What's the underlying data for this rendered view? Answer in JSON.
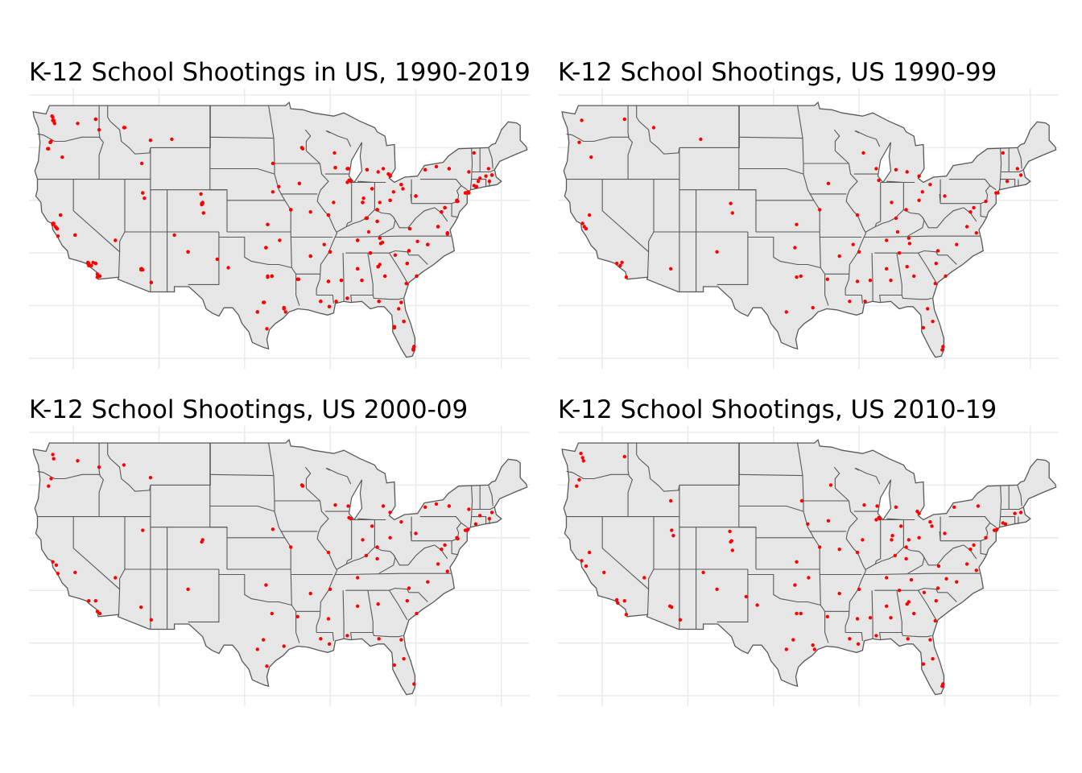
{
  "panels": [
    {
      "title": "K-12 School Shootings in US, 1990-2019",
      "region": "all"
    },
    {
      "title": "K-12 School Shootings, US 1990-99",
      "region": "1990-99"
    },
    {
      "title": "K-12 School Shootings, US 2000-09",
      "region": "2000-09"
    },
    {
      "title": "K-12 School Shootings, US 2010-19",
      "region": "2010-19"
    }
  ],
  "colors": {
    "land": "#e6e6e6",
    "border": "#595959",
    "grid": "#ebebeb",
    "point": "#ff0000"
  },
  "map_data": {
    "x_range": [
      -125,
      -66.5
    ],
    "y_range": [
      24,
      50
    ],
    "grid_lon": [
      -120,
      -110,
      -100,
      -90,
      -80,
      -70
    ],
    "grid_lat": [
      25,
      30,
      35,
      40,
      45,
      50
    ],
    "points": {
      "1990-99": [
        [
          -122.4,
          47.6
        ],
        [
          -117.4,
          47.7
        ],
        [
          -122.7,
          45.5
        ],
        [
          -121.3,
          44.1
        ],
        [
          -114.0,
          46.9
        ],
        [
          -108.5,
          45.8
        ],
        [
          -122.3,
          37.8
        ],
        [
          -121.9,
          37.3
        ],
        [
          -122.1,
          37.5
        ],
        [
          -121.5,
          38.6
        ],
        [
          -118.3,
          34.0
        ],
        [
          -117.9,
          33.8
        ],
        [
          -117.2,
          32.7
        ],
        [
          -117.7,
          34.1
        ],
        [
          -112.0,
          33.5
        ],
        [
          -106.6,
          35.1
        ],
        [
          -104.8,
          38.8
        ],
        [
          -105.0,
          39.7
        ],
        [
          -97.3,
          37.7
        ],
        [
          -96.8,
          32.8
        ],
        [
          -97.3,
          32.7
        ],
        [
          -95.4,
          29.8
        ],
        [
          -98.5,
          29.4
        ],
        [
          -97.5,
          35.5
        ],
        [
          -94.6,
          39.1
        ],
        [
          -90.2,
          38.6
        ],
        [
          -93.6,
          41.6
        ],
        [
          -87.7,
          41.9
        ],
        [
          -86.2,
          39.8
        ],
        [
          -85.7,
          38.3
        ],
        [
          -84.5,
          39.1
        ],
        [
          -83.0,
          40.0
        ],
        [
          -81.7,
          41.5
        ],
        [
          -83.0,
          42.3
        ],
        [
          -88.0,
          43.0
        ],
        [
          -89.5,
          44.5
        ],
        [
          -85.7,
          42.9
        ],
        [
          -84.4,
          42.7
        ],
        [
          -80.0,
          40.4
        ],
        [
          -75.2,
          39.9
        ],
        [
          -77.0,
          38.9
        ],
        [
          -76.6,
          39.3
        ],
        [
          -74.0,
          40.7
        ],
        [
          -73.8,
          40.7
        ],
        [
          -72.7,
          41.8
        ],
        [
          -71.1,
          42.4
        ],
        [
          -73.2,
          44.5
        ],
        [
          -71.5,
          43.0
        ],
        [
          -86.8,
          36.2
        ],
        [
          -85.3,
          35.0
        ],
        [
          -84.1,
          35.9
        ],
        [
          -90.0,
          35.1
        ],
        [
          -90.7,
          35.8
        ],
        [
          -92.3,
          34.7
        ],
        [
          -90.2,
          32.3
        ],
        [
          -88.7,
          32.4
        ],
        [
          -86.8,
          33.5
        ],
        [
          -86.3,
          32.4
        ],
        [
          -84.4,
          33.7
        ],
        [
          -83.6,
          32.8
        ],
        [
          -81.0,
          34.0
        ],
        [
          -80.8,
          35.2
        ],
        [
          -79.9,
          32.8
        ],
        [
          -81.1,
          32.1
        ],
        [
          -82.0,
          29.7
        ],
        [
          -81.4,
          28.5
        ],
        [
          -80.2,
          26.1
        ],
        [
          -80.3,
          25.8
        ],
        [
          -82.5,
          27.9
        ],
        [
          -89.3,
          30.4
        ],
        [
          -91.1,
          30.4
        ],
        [
          -93.7,
          32.5
        ],
        [
          -82.6,
          40.8
        ],
        [
          -85.5,
          37.0
        ],
        [
          -84.2,
          36.4
        ],
        [
          -78.6,
          35.8
        ],
        [
          -76.3,
          36.9
        ],
        [
          -77.4,
          37.5
        ]
      ],
      "2000-09": [
        [
          -122.3,
          47.5
        ],
        [
          -122.4,
          47.9
        ],
        [
          -119.5,
          47.3
        ],
        [
          -117.0,
          46.7
        ],
        [
          -122.6,
          45.6
        ],
        [
          -122.9,
          44.9
        ],
        [
          -114.1,
          46.9
        ],
        [
          -111.0,
          45.7
        ],
        [
          -122.4,
          37.7
        ],
        [
          -122.0,
          37.4
        ],
        [
          -121.8,
          36.6
        ],
        [
          -119.8,
          36.7
        ],
        [
          -118.2,
          34.0
        ],
        [
          -117.4,
          34.0
        ],
        [
          -116.9,
          32.8
        ],
        [
          -117.2,
          33.0
        ],
        [
          -115.1,
          36.2
        ],
        [
          -112.1,
          33.4
        ],
        [
          -110.9,
          32.2
        ],
        [
          -111.9,
          40.7
        ],
        [
          -105.0,
          39.6
        ],
        [
          -104.9,
          39.8
        ],
        [
          -106.6,
          35.1
        ],
        [
          -97.5,
          35.5
        ],
        [
          -97.8,
          30.3
        ],
        [
          -95.4,
          29.7
        ],
        [
          -96.8,
          32.8
        ],
        [
          -98.5,
          29.4
        ],
        [
          -97.4,
          27.8
        ],
        [
          -94.6,
          39.1
        ],
        [
          -93.3,
          45.0
        ],
        [
          -93.2,
          44.9
        ],
        [
          -96.7,
          40.8
        ],
        [
          -90.2,
          38.6
        ],
        [
          -87.6,
          41.8
        ],
        [
          -87.8,
          41.9
        ],
        [
          -86.2,
          39.8
        ],
        [
          -85.1,
          41.1
        ],
        [
          -84.5,
          39.1
        ],
        [
          -83.0,
          40.0
        ],
        [
          -81.7,
          41.5
        ],
        [
          -83.0,
          42.4
        ],
        [
          -83.8,
          43.0
        ],
        [
          -87.9,
          43.0
        ],
        [
          -89.4,
          43.1
        ],
        [
          -80.0,
          40.4
        ],
        [
          -75.2,
          40.0
        ],
        [
          -75.1,
          39.9
        ],
        [
          -76.6,
          39.3
        ],
        [
          -77.0,
          38.9
        ],
        [
          -74.0,
          40.7
        ],
        [
          -73.9,
          40.8
        ],
        [
          -74.2,
          40.7
        ],
        [
          -73.0,
          41.3
        ],
        [
          -71.4,
          41.8
        ],
        [
          -71.1,
          42.4
        ],
        [
          -72.5,
          42.1
        ],
        [
          -73.8,
          42.7
        ],
        [
          -76.1,
          43.0
        ],
        [
          -78.9,
          42.9
        ],
        [
          -77.6,
          43.2
        ],
        [
          -86.8,
          36.2
        ],
        [
          -84.5,
          38.0
        ],
        [
          -85.8,
          38.3
        ],
        [
          -90.0,
          35.1
        ],
        [
          -90.2,
          32.3
        ],
        [
          -86.8,
          33.5
        ],
        [
          -84.4,
          33.7
        ],
        [
          -81.0,
          34.0
        ],
        [
          -80.8,
          35.2
        ],
        [
          -81.7,
          30.3
        ],
        [
          -80.2,
          26.1
        ],
        [
          -81.4,
          28.5
        ],
        [
          -82.5,
          27.9
        ],
        [
          -90.1,
          29.9
        ],
        [
          -91.1,
          30.4
        ],
        [
          -93.8,
          32.5
        ],
        [
          -88.0,
          30.7
        ],
        [
          -84.3,
          30.4
        ],
        [
          -79.9,
          32.8
        ],
        [
          -78.6,
          35.8
        ],
        [
          -77.4,
          37.5
        ],
        [
          -76.3,
          36.8
        ],
        [
          -92.3,
          34.7
        ]
      ],
      "2010-19": [
        [
          -122.3,
          47.6
        ],
        [
          -122.2,
          47.3
        ],
        [
          -122.5,
          48.0
        ],
        [
          -117.4,
          47.7
        ],
        [
          -122.7,
          45.5
        ],
        [
          -123.0,
          44.9
        ],
        [
          -112.0,
          43.5
        ],
        [
          -122.4,
          37.8
        ],
        [
          -121.9,
          37.3
        ],
        [
          -121.5,
          38.6
        ],
        [
          -119.8,
          36.7
        ],
        [
          -118.3,
          34.1
        ],
        [
          -118.2,
          33.8
        ],
        [
          -117.4,
          34.0
        ],
        [
          -117.2,
          32.7
        ],
        [
          -115.1,
          36.2
        ],
        [
          -112.1,
          33.5
        ],
        [
          -111.9,
          33.4
        ],
        [
          -110.9,
          32.2
        ],
        [
          -111.9,
          40.7
        ],
        [
          -111.7,
          40.2
        ],
        [
          -104.9,
          39.7
        ],
        [
          -105.0,
          39.6
        ],
        [
          -104.8,
          38.8
        ],
        [
          -105.1,
          40.6
        ],
        [
          -106.6,
          35.1
        ],
        [
          -108.2,
          36.7
        ],
        [
          -103.2,
          34.4
        ],
        [
          -97.5,
          35.5
        ],
        [
          -95.9,
          36.2
        ],
        [
          -96.8,
          32.8
        ],
        [
          -97.3,
          32.8
        ],
        [
          -95.4,
          29.8
        ],
        [
          -95.2,
          29.4
        ],
        [
          -98.5,
          29.4
        ],
        [
          -97.7,
          30.3
        ],
        [
          -101.9,
          33.6
        ],
        [
          -94.6,
          39.1
        ],
        [
          -97.3,
          37.7
        ],
        [
          -96.0,
          41.3
        ],
        [
          -93.6,
          41.6
        ],
        [
          -93.3,
          45.0
        ],
        [
          -96.7,
          43.5
        ],
        [
          -90.2,
          38.6
        ],
        [
          -92.3,
          38.9
        ],
        [
          -87.6,
          41.8
        ],
        [
          -87.7,
          41.9
        ],
        [
          -88.0,
          41.7
        ],
        [
          -89.6,
          39.8
        ],
        [
          -86.2,
          39.8
        ],
        [
          -86.1,
          40.2
        ],
        [
          -85.1,
          41.1
        ],
        [
          -84.5,
          39.1
        ],
        [
          -83.0,
          40.0
        ],
        [
          -81.7,
          41.5
        ],
        [
          -81.5,
          41.1
        ],
        [
          -84.2,
          39.8
        ],
        [
          -83.0,
          42.3
        ],
        [
          -83.2,
          42.5
        ],
        [
          -85.7,
          42.9
        ],
        [
          -87.9,
          43.0
        ],
        [
          -89.4,
          43.1
        ],
        [
          -80.0,
          40.4
        ],
        [
          -75.2,
          40.0
        ],
        [
          -76.6,
          39.3
        ],
        [
          -77.0,
          38.9
        ],
        [
          -74.0,
          40.7
        ],
        [
          -73.9,
          40.8
        ],
        [
          -74.2,
          40.7
        ],
        [
          -73.2,
          41.4
        ],
        [
          -72.9,
          41.3
        ],
        [
          -71.1,
          42.4
        ],
        [
          -71.8,
          42.3
        ],
        [
          -76.1,
          43.0
        ],
        [
          -78.9,
          42.9
        ],
        [
          -86.8,
          36.2
        ],
        [
          -85.8,
          38.3
        ],
        [
          -84.5,
          38.0
        ],
        [
          -83.9,
          36.0
        ],
        [
          -85.3,
          35.0
        ],
        [
          -90.0,
          35.1
        ],
        [
          -90.2,
          32.3
        ],
        [
          -88.7,
          32.4
        ],
        [
          -86.8,
          33.5
        ],
        [
          -86.3,
          32.4
        ],
        [
          -84.4,
          33.7
        ],
        [
          -84.2,
          33.9
        ],
        [
          -83.6,
          32.8
        ],
        [
          -81.1,
          32.1
        ],
        [
          -81.0,
          34.0
        ],
        [
          -80.8,
          35.2
        ],
        [
          -79.8,
          36.1
        ],
        [
          -78.6,
          35.8
        ],
        [
          -77.4,
          37.5
        ],
        [
          -76.3,
          36.9
        ],
        [
          -80.2,
          26.1
        ],
        [
          -80.3,
          25.9
        ],
        [
          -81.4,
          28.5
        ],
        [
          -82.5,
          28.0
        ],
        [
          -81.7,
          30.3
        ],
        [
          -90.1,
          29.9
        ],
        [
          -91.1,
          30.4
        ],
        [
          -93.7,
          32.5
        ],
        [
          -92.3,
          34.7
        ],
        [
          -88.0,
          30.7
        ],
        [
          -84.3,
          30.4
        ],
        [
          -82.4,
          34.8
        ],
        [
          -80.7,
          37.3
        ]
      ]
    }
  }
}
